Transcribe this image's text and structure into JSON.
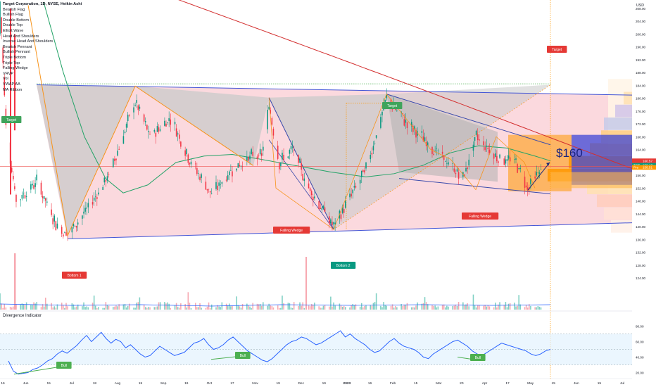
{
  "header": {
    "title": "Target Corporation, 1D, NYSE, Heikin Ashi",
    "indicators": [
      "Bearish Flag",
      "Bullish Flag",
      "Double Bottom",
      "Double Top",
      "Elliott Wave",
      "Head And Shoulders",
      "Inverse Head And Shoulders",
      "Bearish Pennant",
      "Bullish Pennant",
      "Triple Bottom",
      "Triple Top",
      "Falling Wedge",
      "VRVP",
      "Vol",
      "VWAP AA",
      "MA Ribbon"
    ]
  },
  "price_axis": {
    "currency": "USD",
    "ticks": [
      "208.00",
      "204.00",
      "200.00",
      "196.00",
      "192.00",
      "188.00",
      "184.00",
      "180.00",
      "176.00",
      "172.00",
      "168.00",
      "164.00",
      "160.00",
      "156.00",
      "152.00",
      "148.00",
      "144.00",
      "140.00",
      "136.00",
      "132.00",
      "128.00",
      "124.00"
    ],
    "tags": [
      {
        "label": "",
        "value": "160.57",
        "color": "#e53935"
      },
      {
        "label": "TGT",
        "value": "159.18",
        "color": "#089981"
      },
      {
        "label": "Pre",
        "value": "158.51",
        "color": "#ff9800"
      }
    ]
  },
  "time_axis": {
    "labels": [
      "16",
      "Jun",
      "15",
      "Jul",
      "18",
      "Aug",
      "15",
      "Sep",
      "19",
      "Oct",
      "17",
      "Nov",
      "19",
      "Dec",
      "19",
      "2023",
      "16",
      "Feb",
      "15",
      "Mar",
      "20",
      "Apr",
      "17",
      "May",
      "15",
      "Jun",
      "15",
      "Jul"
    ]
  },
  "annotations": {
    "price_target": "$160",
    "labels": [
      "Target",
      "Target",
      "Target",
      "Falling Wedge",
      "Falling Wedge",
      "Bottom 1",
      "Bottom 2",
      "Bull",
      "Bull",
      "Bull"
    ]
  },
  "oscillator": {
    "title": "Divergence Indicator",
    "ticks": [
      "80.00",
      "60.00",
      "40.00",
      "20.00"
    ]
  },
  "colors": {
    "up": "#089981",
    "down": "#f23645",
    "wedge": "#3949ab",
    "triangle": "#4355d6",
    "zigzag": "#f7931a",
    "ma_green": "#23a367",
    "ma_red": "#d32f2f",
    "osc_line": "#2962ff",
    "vrvp_orange": "#ff9800",
    "vrvp_blue": "#3d46d6"
  },
  "chart_data": [
    {
      "type": "candlestick",
      "title": "Target Corporation, 1D, NYSE, Heikin Ashi",
      "ylabel": "USD",
      "ylim": [
        120,
        210
      ],
      "x_range": [
        "2022-05-16",
        "2023-07-20"
      ],
      "key_points": [
        {
          "label": "Bottom 1",
          "date": "2022-07-01",
          "price": 137.2
        },
        {
          "label": "",
          "date": "2022-08-16",
          "price": 183.8
        },
        {
          "label": "",
          "date": "2022-11-15",
          "price": 180.2
        },
        {
          "label": "Bottom 2",
          "date": "2022-12-29",
          "price": 139.1
        },
        {
          "label": "",
          "date": "2023-02-03",
          "price": 181.3
        },
        {
          "label": "",
          "date": "2023-04-05",
          "price": 168.8
        },
        {
          "label": "",
          "date": "2023-05-10",
          "price": 151.3
        },
        {
          "label": "",
          "date": "2023-05-25",
          "price": 160.0
        }
      ],
      "last_price": 159.18,
      "target_price": 160
    },
    {
      "type": "line",
      "title": "Divergence Indicator",
      "ylim": [
        15,
        85
      ],
      "x_range": [
        "2022-05-16",
        "2023-07-20"
      ],
      "values": [
        35,
        22,
        18,
        19,
        20,
        24,
        26,
        30,
        35,
        38,
        44,
        48,
        45,
        50,
        55,
        62,
        68,
        60,
        66,
        72,
        64,
        58,
        63,
        60,
        52,
        56,
        50,
        44,
        40,
        42,
        48,
        54,
        50,
        46,
        42,
        44,
        46,
        52,
        58,
        60,
        64,
        56,
        50,
        52,
        56,
        62,
        66,
        60,
        54,
        48,
        44,
        40,
        36,
        34,
        38,
        44,
        50,
        56,
        60,
        62,
        66,
        64,
        60,
        56,
        58,
        62,
        66,
        70,
        74,
        66,
        70,
        64,
        60,
        56,
        50,
        46,
        48,
        54,
        60,
        64,
        58,
        54,
        52,
        50,
        46,
        40,
        38,
        44,
        48,
        52,
        56,
        60,
        62,
        58,
        54,
        48,
        44,
        42,
        46,
        50,
        54,
        58,
        56,
        54,
        52,
        50,
        48,
        44,
        42,
        44,
        48,
        50
      ]
    }
  ]
}
